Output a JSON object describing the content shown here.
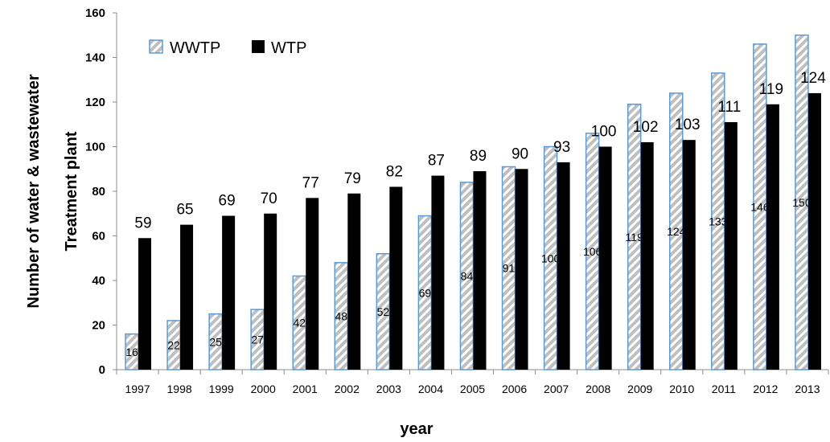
{
  "chart_data": {
    "type": "bar",
    "categories": [
      "1997",
      "1998",
      "1999",
      "2000",
      "2001",
      "2002",
      "2003",
      "2004",
      "2005",
      "2006",
      "2007",
      "2008",
      "2009",
      "2010",
      "2011",
      "2012",
      "2013"
    ],
    "series": [
      {
        "name": "WWTP",
        "values": [
          16,
          22,
          25,
          27,
          42,
          48,
          52,
          69,
          84,
          91,
          100,
          106,
          119,
          124,
          133,
          146,
          150
        ],
        "labels": [
          "16",
          "22",
          "25",
          "27",
          "42",
          "48",
          "52",
          "69",
          "84",
          "91",
          "100",
          "106",
          "119",
          "124",
          "133",
          "146",
          "150"
        ],
        "fill": "hatched",
        "border_color": "#5b9bd5",
        "hatch_color": "#bfbfbf"
      },
      {
        "name": "WTP",
        "values": [
          59,
          65,
          69,
          70,
          77,
          79,
          82,
          87,
          89,
          90,
          93,
          100,
          102,
          103,
          111,
          119,
          124
        ],
        "labels": [
          "59",
          "65",
          "69",
          "70",
          "77",
          "79",
          "82",
          "87",
          "89",
          "90",
          "93",
          "100",
          "102",
          "103",
          "111",
          "119",
          "124"
        ],
        "fill": "solid",
        "color": "#000000"
      }
    ],
    "xlabel": "year",
    "ylabel_lines": [
      "Number of water & wastewater",
      "Treatment plant"
    ],
    "ylim": [
      0,
      160
    ],
    "yticks": [
      "0",
      "20",
      "40",
      "60",
      "80",
      "100",
      "120",
      "140",
      "160"
    ],
    "grid": false,
    "legend_position": "top-left"
  }
}
